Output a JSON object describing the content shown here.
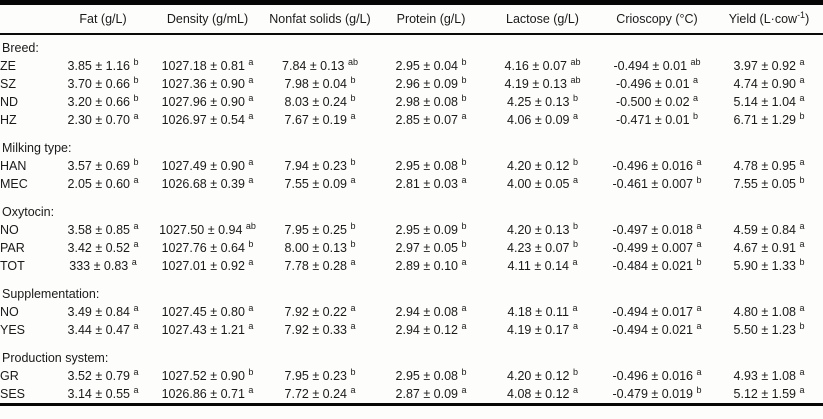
{
  "header": {
    "corner": "",
    "cols": [
      {
        "label": "Fat (g/L)"
      },
      {
        "label": "Density (g/mL)"
      },
      {
        "label": "Nonfat solids (g/L)"
      },
      {
        "label": "Protein (g/L)"
      },
      {
        "label": "Lactose (g/L)"
      },
      {
        "label": "Crioscopy (°C)"
      },
      {
        "label": "Yield (L·cow",
        "sup": "-1",
        "suffix": ")"
      }
    ]
  },
  "colors": {
    "text": "#1a1a1a",
    "rule": "#060606",
    "background": "#fdfdfc"
  },
  "groups": [
    {
      "title": "Breed:",
      "rows": [
        {
          "label": "ZE",
          "cells": [
            {
              "v": "3.85 ± 1.16",
              "s": "b"
            },
            {
              "v": "1027.18 ± 0.81",
              "s": "a"
            },
            {
              "v": "7.84 ± 0.13",
              "s": "ab"
            },
            {
              "v": "2.95 ± 0.04",
              "s": "b"
            },
            {
              "v": "4.16 ± 0.07",
              "s": "ab"
            },
            {
              "v": "-0.494 ± 0.01",
              "s": "ab"
            },
            {
              "v": "3.97 ± 0.92",
              "s": "a"
            }
          ]
        },
        {
          "label": "SZ",
          "cells": [
            {
              "v": "3.70 ± 0.66",
              "s": "b"
            },
            {
              "v": "1027.36 ± 0.90",
              "s": "a"
            },
            {
              "v": "7.98 ± 0.04",
              "s": "b"
            },
            {
              "v": "2.96 ± 0.09",
              "s": "b"
            },
            {
              "v": "4.19 ± 0.13",
              "s": "ab"
            },
            {
              "v": "-0.496 ± 0.01",
              "s": "a"
            },
            {
              "v": "4.74 ± 0.90",
              "s": "a"
            }
          ]
        },
        {
          "label": "ND",
          "cells": [
            {
              "v": "3.20 ± 0.66",
              "s": "b"
            },
            {
              "v": "1027.96 ± 0.90",
              "s": "a"
            },
            {
              "v": "8.03 ± 0.24",
              "s": "b"
            },
            {
              "v": "2.98 ± 0.08",
              "s": "b"
            },
            {
              "v": "4.25 ± 0.13",
              "s": "b"
            },
            {
              "v": "-0.500 ± 0.02",
              "s": "a"
            },
            {
              "v": "5.14 ± 1.04",
              "s": "a"
            }
          ]
        },
        {
          "label": "HZ",
          "cells": [
            {
              "v": "2.30 ± 0.70",
              "s": "a"
            },
            {
              "v": "1026.97 ± 0.54",
              "s": "a"
            },
            {
              "v": "7.67 ± 0.19",
              "s": "a"
            },
            {
              "v": "2.85 ± 0.07",
              "s": "a"
            },
            {
              "v": "4.06 ± 0.09",
              "s": "a"
            },
            {
              "v": "-0.471 ± 0.01",
              "s": "b"
            },
            {
              "v": "6.71 ± 1.29",
              "s": "b"
            }
          ]
        }
      ]
    },
    {
      "title": "Milking type:",
      "rows": [
        {
          "label": "HAN",
          "cells": [
            {
              "v": "3.57 ± 0.69",
              "s": "b"
            },
            {
              "v": "1027.49 ± 0.90",
              "s": "a"
            },
            {
              "v": "7.94 ± 0.23",
              "s": "b"
            },
            {
              "v": "2.95 ± 0.08",
              "s": "b"
            },
            {
              "v": "4.20 ± 0.12",
              "s": "b"
            },
            {
              "v": "-0.496 ± 0.016",
              "s": "a"
            },
            {
              "v": "4.78 ± 0.95",
              "s": "a"
            }
          ]
        },
        {
          "label": "MEC",
          "cells": [
            {
              "v": "2.05 ± 0.60",
              "s": "a"
            },
            {
              "v": "1026.68 ± 0.39",
              "s": "a"
            },
            {
              "v": "7.55 ± 0.09",
              "s": "a"
            },
            {
              "v": "2.81 ± 0.03",
              "s": "a"
            },
            {
              "v": "4.00 ± 0.05",
              "s": "a"
            },
            {
              "v": "-0.461 ± 0.007",
              "s": "b"
            },
            {
              "v": "7.55 ± 0.05",
              "s": "b"
            }
          ]
        }
      ]
    },
    {
      "title": "Oxytocin:",
      "rows": [
        {
          "label": "NO",
          "cells": [
            {
              "v": "3.58 ± 0.85",
              "s": "a"
            },
            {
              "v": "1027.50 ± 0.94",
              "s": "ab"
            },
            {
              "v": "7.95 ± 0.25",
              "s": "b"
            },
            {
              "v": "2.95 ± 0.09",
              "s": "b"
            },
            {
              "v": "4.20 ± 0.13",
              "s": "b"
            },
            {
              "v": "-0.497 ± 0.018",
              "s": "a"
            },
            {
              "v": "4.59 ± 0.84",
              "s": "a"
            }
          ]
        },
        {
          "label": "PAR",
          "cells": [
            {
              "v": "3.42 ± 0.52",
              "s": "a"
            },
            {
              "v": "1027.76 ± 0.64",
              "s": "b"
            },
            {
              "v": "8.00 ± 0.13",
              "s": "b"
            },
            {
              "v": "2.97 ± 0.05",
              "s": "b"
            },
            {
              "v": "4.23 ± 0.07",
              "s": "b"
            },
            {
              "v": "-0.499 ± 0.007",
              "s": "a"
            },
            {
              "v": "4.67 ± 0.91",
              "s": "a"
            }
          ]
        },
        {
          "label": "TOT",
          "cells": [
            {
              "v": "333 ± 0.83",
              "s": "a"
            },
            {
              "v": "1027.01 ± 0.92",
              "s": "a"
            },
            {
              "v": "7.78 ± 0.28",
              "s": "a"
            },
            {
              "v": "2.89 ± 0.10",
              "s": "a"
            },
            {
              "v": "4.11 ± 0.14",
              "s": "a"
            },
            {
              "v": "-0.484 ± 0.021",
              "s": "b"
            },
            {
              "v": "5.90 ± 1.33",
              "s": "b"
            }
          ]
        }
      ]
    },
    {
      "title": "Supplementation:",
      "rows": [
        {
          "label": "NO",
          "cells": [
            {
              "v": "3.49 ± 0.84",
              "s": "a"
            },
            {
              "v": "1027.45 ± 0.80",
              "s": "a"
            },
            {
              "v": "7.92 ± 0.22",
              "s": "a"
            },
            {
              "v": "2.94 ± 0.08",
              "s": "a"
            },
            {
              "v": "4.18 ± 0.11",
              "s": "a"
            },
            {
              "v": "-0.494 ± 0.017",
              "s": "a"
            },
            {
              "v": "4.80 ± 1.08",
              "s": "a"
            }
          ]
        },
        {
          "label": "YES",
          "cells": [
            {
              "v": "3.44 ± 0.47",
              "s": "a"
            },
            {
              "v": "1027.43 ± 1.21",
              "s": "a"
            },
            {
              "v": "7.92 ± 0.33",
              "s": "a"
            },
            {
              "v": "2.94 ± 0.12",
              "s": "a"
            },
            {
              "v": "4.19 ± 0.17",
              "s": "a"
            },
            {
              "v": "-0.494 ± 0.021",
              "s": "a"
            },
            {
              "v": "5.50 ± 1.23",
              "s": "b"
            }
          ]
        }
      ]
    },
    {
      "title": "Production system:",
      "rows": [
        {
          "label": "GR",
          "cells": [
            {
              "v": "3.52 ± 0.79",
              "s": "a"
            },
            {
              "v": "1027.52 ± 0.90",
              "s": "b"
            },
            {
              "v": "7.95 ± 0.23",
              "s": "b"
            },
            {
              "v": "2.95 ± 0.08",
              "s": "b"
            },
            {
              "v": "4.20 ± 0.12",
              "s": "b"
            },
            {
              "v": "-0.496 ± 0.016",
              "s": "a"
            },
            {
              "v": "4.93 ± 1.08",
              "s": "a"
            }
          ]
        },
        {
          "label": "SES",
          "cells": [
            {
              "v": "3.14 ± 0.55",
              "s": "a"
            },
            {
              "v": "1026.86 ± 0.71",
              "s": "a"
            },
            {
              "v": "7.72 ± 0.24",
              "s": "a"
            },
            {
              "v": "2.87 ± 0.09",
              "s": "a"
            },
            {
              "v": "4.08 ± 0.12",
              "s": "a"
            },
            {
              "v": "-0.479 ± 0.019",
              "s": "b"
            },
            {
              "v": "5.12 ± 1.59",
              "s": "a"
            }
          ]
        }
      ]
    }
  ]
}
